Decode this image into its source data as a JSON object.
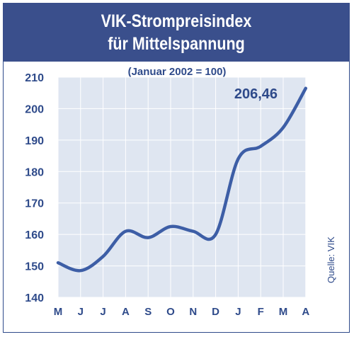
{
  "header": {
    "title_line1": "VIK-Strompreisindex",
    "title_line2": "für Mittelspannung"
  },
  "subtitle": "(Januar 2002 = 100)",
  "source": "Quelle: VIK",
  "colors": {
    "header_bg": "#3a4f8c",
    "plot_bg": "#dfe6f1",
    "line": "#3d5ea6",
    "text": "#2e4a8a"
  },
  "chart_data": {
    "type": "line",
    "title": "VIK-Strompreisindex für Mittelspannung",
    "subtitle": "(Januar 2002 = 100)",
    "xlabel": "",
    "ylabel": "",
    "categories": [
      "M",
      "J",
      "J",
      "A",
      "S",
      "O",
      "N",
      "D",
      "J",
      "F",
      "M",
      "A"
    ],
    "ylim": [
      140,
      210
    ],
    "yticks": [
      140,
      150,
      160,
      170,
      180,
      190,
      200,
      210
    ],
    "grid": true,
    "series": [
      {
        "name": "",
        "values": [
          151.0,
          148.5,
          153.0,
          161.0,
          159.0,
          162.5,
          161.0,
          160.0,
          184.0,
          188.0,
          194.0,
          206.46
        ]
      }
    ],
    "annotations": [
      {
        "text": "206,46",
        "category_index": 11
      }
    ]
  }
}
